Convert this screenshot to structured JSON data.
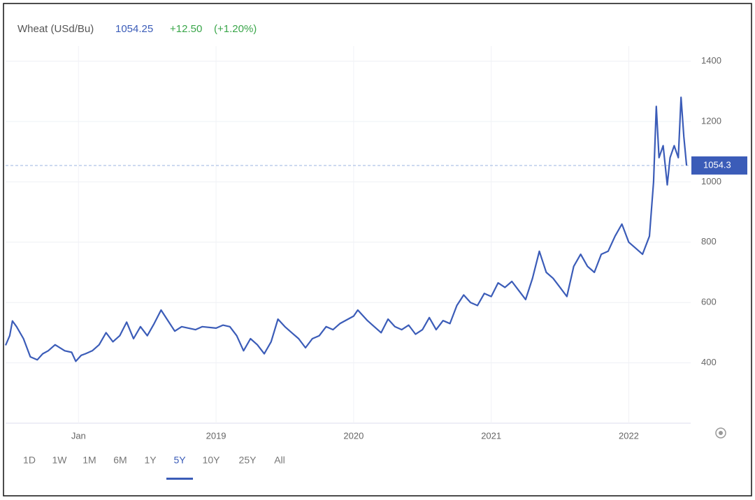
{
  "header": {
    "title": "Wheat (USd/Bu)",
    "price": "1054.25",
    "change": "+12.50",
    "change_pct": "(+1.20%)"
  },
  "ranges": [
    "1D",
    "1W",
    "1M",
    "6M",
    "1Y",
    "5Y",
    "10Y",
    "25Y",
    "All"
  ],
  "active_range_index": 5,
  "chart_data": {
    "type": "line",
    "color": "#3b5cb8",
    "grid": true,
    "xlim": [
      2017.47,
      2022.45
    ],
    "xticks": [
      {
        "value": 2018,
        "label": "Jan"
      },
      2019,
      2020,
      2021,
      2022
    ],
    "ylim": [
      200,
      1450
    ],
    "yticks": [
      400,
      600,
      800,
      1000,
      1200,
      1400
    ],
    "last": {
      "value": 1054.25,
      "label": "1054.3"
    },
    "x": [
      2017.47,
      2017.5,
      2017.52,
      2017.55,
      2017.6,
      2017.65,
      2017.7,
      2017.74,
      2017.78,
      2017.83,
      2017.9,
      2017.95,
      2017.98,
      2018.02,
      2018.05,
      2018.1,
      2018.15,
      2018.2,
      2018.25,
      2018.3,
      2018.35,
      2018.4,
      2018.45,
      2018.5,
      2018.55,
      2018.6,
      2018.65,
      2018.7,
      2018.75,
      2018.85,
      2018.9,
      2019.0,
      2019.05,
      2019.1,
      2019.15,
      2019.2,
      2019.25,
      2019.3,
      2019.35,
      2019.4,
      2019.45,
      2019.5,
      2019.55,
      2019.6,
      2019.65,
      2019.7,
      2019.75,
      2019.8,
      2019.85,
      2019.9,
      2020.0,
      2020.03,
      2020.1,
      2020.15,
      2020.2,
      2020.25,
      2020.3,
      2020.35,
      2020.4,
      2020.45,
      2020.5,
      2020.55,
      2020.6,
      2020.65,
      2020.7,
      2020.75,
      2020.8,
      2020.85,
      2020.9,
      2020.95,
      2021.0,
      2021.05,
      2021.1,
      2021.15,
      2021.2,
      2021.25,
      2021.3,
      2021.35,
      2021.4,
      2021.45,
      2021.5,
      2021.55,
      2021.6,
      2021.65,
      2021.7,
      2021.75,
      2021.8,
      2021.85,
      2021.9,
      2021.95,
      2022.0,
      2022.05,
      2022.1,
      2022.15,
      2022.18,
      2022.2,
      2022.22,
      2022.25,
      2022.28,
      2022.3,
      2022.33,
      2022.36,
      2022.38,
      2022.4,
      2022.42
    ],
    "values": [
      458,
      490,
      539,
      520,
      480,
      420,
      410,
      430,
      440,
      460,
      440,
      435,
      405,
      425,
      430,
      440,
      460,
      500,
      470,
      490,
      535,
      480,
      520,
      490,
      530,
      575,
      540,
      505,
      520,
      510,
      520,
      515,
      525,
      520,
      490,
      440,
      480,
      460,
      430,
      470,
      545,
      520,
      500,
      480,
      450,
      480,
      490,
      520,
      510,
      530,
      555,
      575,
      540,
      520,
      500,
      545,
      520,
      510,
      525,
      495,
      510,
      550,
      510,
      540,
      530,
      590,
      625,
      600,
      590,
      630,
      620,
      665,
      650,
      670,
      640,
      610,
      680,
      770,
      700,
      680,
      650,
      620,
      720,
      760,
      720,
      700,
      760,
      770,
      820,
      860,
      800,
      780,
      760,
      820,
      1000,
      1250,
      1080,
      1120,
      990,
      1080,
      1120,
      1080,
      1280,
      1150,
      1054.25
    ]
  }
}
